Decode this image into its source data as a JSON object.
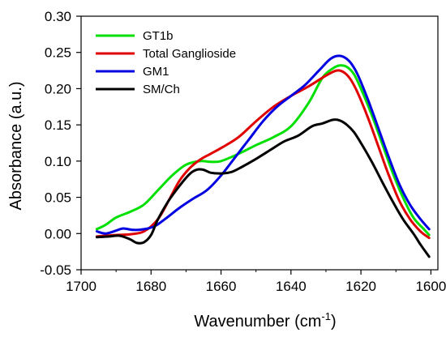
{
  "chart_data": {
    "type": "line",
    "title": "",
    "xlabel": {
      "main": "Wavenumber (cm",
      "sup": "-1",
      "tail": ")"
    },
    "ylabel": "Absorbance (a.u.)",
    "xlim": [
      1700,
      1598
    ],
    "ylim": [
      -0.05,
      0.3
    ],
    "x_ticks": [
      1700,
      1680,
      1660,
      1640,
      1620,
      1600
    ],
    "y_ticks": [
      -0.05,
      0.0,
      0.05,
      0.1,
      0.15,
      0.2,
      0.25,
      0.3
    ],
    "x_tick_labels": [
      "1700",
      "1680",
      "1660",
      "1640",
      "1620",
      "1600"
    ],
    "y_tick_labels": [
      "-0.05",
      "0.00",
      "0.05",
      "0.10",
      "0.15",
      "0.20",
      "0.25",
      "0.30"
    ],
    "legend_position": "top-left",
    "series": [
      {
        "name": "GT1b",
        "color": "#00e000",
        "x": [
          1695.5,
          1693,
          1690,
          1686,
          1682,
          1678,
          1674,
          1670,
          1666,
          1663,
          1660,
          1655,
          1650,
          1645,
          1640,
          1635,
          1631,
          1628,
          1626,
          1624,
          1622,
          1620,
          1617,
          1614,
          1611,
          1608,
          1605,
          1602,
          1600.5
        ],
        "y": [
          0.006,
          0.012,
          0.022,
          0.03,
          0.04,
          0.06,
          0.08,
          0.095,
          0.1,
          0.099,
          0.1,
          0.11,
          0.122,
          0.133,
          0.148,
          0.18,
          0.215,
          0.228,
          0.232,
          0.23,
          0.22,
          0.2,
          0.165,
          0.125,
          0.085,
          0.05,
          0.022,
          0.006,
          -0.002
        ]
      },
      {
        "name": "Total Ganglioside",
        "color": "#e00000",
        "x": [
          1695.5,
          1693,
          1690,
          1686,
          1682,
          1678,
          1675,
          1672,
          1669,
          1666,
          1663,
          1660,
          1655,
          1650,
          1645,
          1640,
          1635,
          1630,
          1627,
          1625,
          1623,
          1621,
          1618,
          1615,
          1612,
          1609,
          1606,
          1603,
          1600.5
        ],
        "y": [
          -0.004,
          -0.003,
          -0.002,
          -0.001,
          0.003,
          0.02,
          0.045,
          0.072,
          0.09,
          0.102,
          0.11,
          0.118,
          0.133,
          0.155,
          0.175,
          0.19,
          0.203,
          0.218,
          0.225,
          0.223,
          0.213,
          0.195,
          0.16,
          0.12,
          0.08,
          0.045,
          0.02,
          0.003,
          -0.006
        ]
      },
      {
        "name": "GM1",
        "color": "#0000e0",
        "x": [
          1695.5,
          1693,
          1690,
          1688,
          1685,
          1682,
          1679,
          1676,
          1672,
          1668,
          1664,
          1660,
          1656,
          1652,
          1648,
          1644,
          1640,
          1636,
          1632,
          1629,
          1627,
          1625,
          1623,
          1621,
          1618,
          1615,
          1612,
          1609,
          1606,
          1603,
          1600.5
        ],
        "y": [
          0.003,
          0.0,
          0.004,
          0.007,
          0.005,
          0.006,
          0.01,
          0.02,
          0.035,
          0.048,
          0.06,
          0.08,
          0.105,
          0.13,
          0.155,
          0.175,
          0.19,
          0.205,
          0.225,
          0.24,
          0.245,
          0.244,
          0.236,
          0.22,
          0.185,
          0.145,
          0.105,
          0.068,
          0.04,
          0.02,
          0.006
        ]
      },
      {
        "name": "SM/Ch",
        "color": "#000000",
        "x": [
          1695.5,
          1692,
          1689,
          1686,
          1684,
          1682,
          1680,
          1678,
          1675,
          1672,
          1669,
          1667,
          1665,
          1663,
          1660,
          1657,
          1654,
          1650,
          1646,
          1642,
          1638,
          1634,
          1631,
          1628,
          1626,
          1624,
          1622,
          1620,
          1617,
          1614,
          1611,
          1608,
          1605,
          1603,
          1600.5
        ],
        "y": [
          -0.005,
          -0.004,
          -0.003,
          -0.008,
          -0.013,
          -0.012,
          -0.002,
          0.02,
          0.045,
          0.065,
          0.082,
          0.088,
          0.088,
          0.084,
          0.083,
          0.085,
          0.092,
          0.103,
          0.115,
          0.127,
          0.135,
          0.148,
          0.152,
          0.157,
          0.156,
          0.15,
          0.14,
          0.125,
          0.1,
          0.072,
          0.045,
          0.02,
          0.0,
          -0.015,
          -0.032
        ]
      }
    ]
  }
}
